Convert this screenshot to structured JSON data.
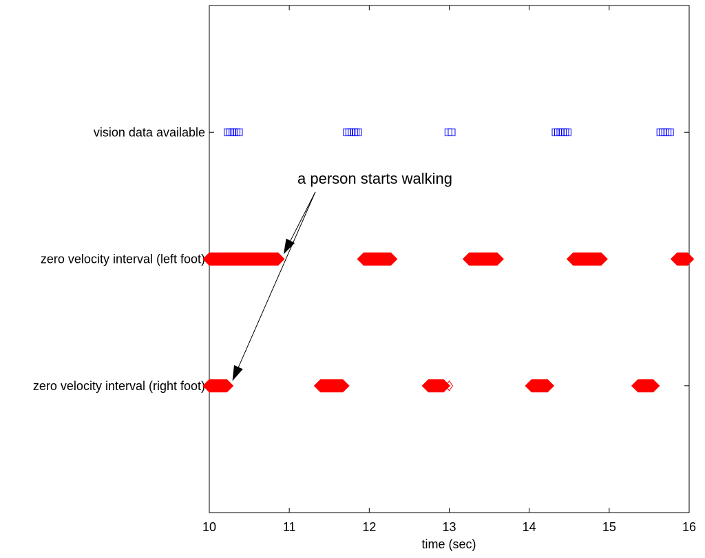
{
  "chart_data": {
    "type": "scatter",
    "title": "",
    "xlabel": "time (sec)",
    "ylabel": "",
    "xlim": [
      10,
      16
    ],
    "ylim": [
      0,
      4
    ],
    "x_ticks": [
      "10",
      "11",
      "12",
      "13",
      "14",
      "15",
      "16"
    ],
    "grid": false,
    "categories": [
      "zero velocity interval (right foot)",
      "zero velocity interval (left foot)",
      "vision data available"
    ],
    "series": [
      {
        "category": "vision data available",
        "marker": "square",
        "filled": false,
        "color": "#0000ff",
        "x": [
          10.23,
          10.26,
          10.29,
          10.31,
          10.34,
          10.37,
          11.72,
          11.75,
          11.78,
          11.81,
          11.83,
          11.86,
          12.99,
          13.03,
          14.33,
          14.36,
          14.39,
          14.42,
          14.45,
          14.48,
          15.64,
          15.67,
          15.7,
          15.73,
          15.76
        ]
      },
      {
        "category": "zero velocity interval (left foot)",
        "marker": "diamond",
        "filled": true,
        "color": "#ff0000",
        "intervals": [
          [
            10.0,
            10.86
          ],
          [
            11.93,
            12.27
          ],
          [
            13.25,
            13.6
          ],
          [
            14.55,
            14.9
          ],
          [
            15.85,
            15.98
          ]
        ]
      },
      {
        "category": "zero velocity interval (right foot)",
        "marker": "diamond",
        "filled": true,
        "color": "#ff0000",
        "intervals": [
          [
            10.0,
            10.22
          ],
          [
            11.39,
            11.67
          ],
          [
            12.74,
            12.93
          ],
          [
            14.03,
            14.23
          ],
          [
            15.36,
            15.55
          ]
        ],
        "open_points": [
          13.0
        ]
      }
    ],
    "annotation": {
      "text": "a person starts walking",
      "arrow_targets": [
        {
          "category": "zero velocity interval (left foot)",
          "x": 10.86
        },
        {
          "category": "zero velocity interval (right foot)",
          "x": 10.22
        }
      ]
    }
  }
}
